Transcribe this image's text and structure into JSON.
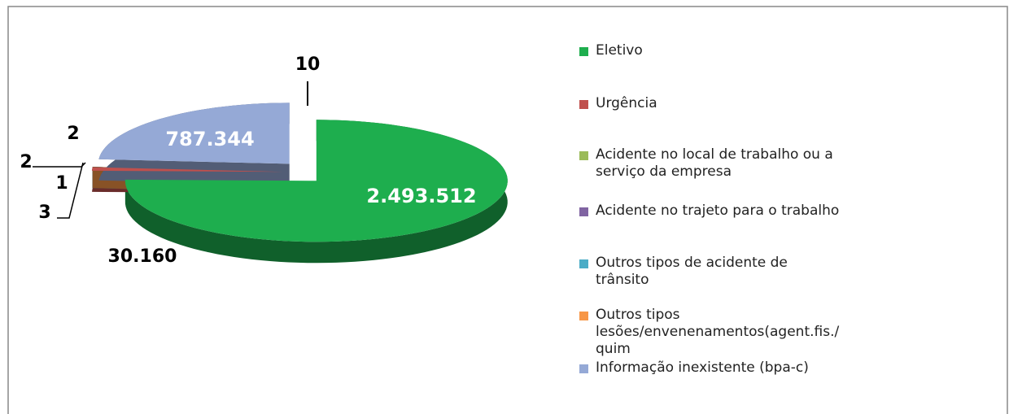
{
  "chart_data": {
    "type": "pie3d",
    "categories": [
      "Eletivo",
      "Urgência",
      "Acidente  no local de trabalho ou a serviço da empresa",
      "Acidente no trajeto para o trabalho",
      "Outros tipos de acidente de trânsito",
      "Outros tipos lesões/envenenamentos(agent.fis./quim",
      "Informação inexistente (bpa-c)"
    ],
    "values": [
      2493512,
      30160,
      2,
      1,
      3,
      10,
      787344
    ],
    "value_labels": [
      "2.493.512",
      "30.160",
      "2",
      "1",
      "3",
      "10",
      "787.344"
    ],
    "colors": [
      "#1eae4e",
      "#c0504d",
      "#9bbb59",
      "#8064a2",
      "#4bacc6",
      "#f79646",
      "#95a9d6"
    ],
    "annotations": [
      "2"
    ],
    "legend": "right"
  }
}
